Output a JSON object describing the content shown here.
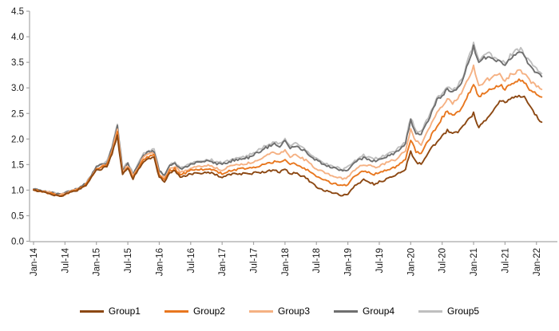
{
  "chart_data": {
    "type": "line",
    "title": "",
    "xlabel": "",
    "ylabel": "",
    "x_unit": "month",
    "x_range": [
      "Jan-14",
      "Feb-22"
    ],
    "x_tick_labels": [
      "Jan-14",
      "Jul-14",
      "Jan-15",
      "Jul-15",
      "Jan-16",
      "Jul-16",
      "Jan-17",
      "Jul-17",
      "Jan-18",
      "Jul-18",
      "Jan-19",
      "Jul-19",
      "Jan-20",
      "Jul-20",
      "Jan-21",
      "Jul-21",
      "Jan-22"
    ],
    "x_tick_interval_months": 6,
    "y_tick_labels": [
      "0.0",
      "0.5",
      "1.0",
      "1.5",
      "2.0",
      "2.5",
      "3.0",
      "3.5",
      "4.0",
      "4.5"
    ],
    "ylim": [
      0.0,
      4.5
    ],
    "gridlines": false,
    "legend_position": "bottom",
    "axis_color": "#A6A6A6",
    "text_color": "#000000",
    "series": [
      {
        "name": "Group1",
        "color": "#8C4813",
        "values": [
          1.0,
          0.98,
          0.96,
          0.93,
          0.91,
          0.89,
          0.91,
          0.95,
          0.99,
          1.03,
          1.1,
          1.24,
          1.38,
          1.42,
          1.47,
          1.72,
          2.05,
          1.3,
          1.42,
          1.22,
          1.4,
          1.57,
          1.63,
          1.64,
          1.25,
          1.17,
          1.34,
          1.38,
          1.27,
          1.29,
          1.32,
          1.34,
          1.34,
          1.34,
          1.33,
          1.29,
          1.25,
          1.28,
          1.31,
          1.32,
          1.32,
          1.33,
          1.33,
          1.35,
          1.36,
          1.38,
          1.39,
          1.36,
          1.4,
          1.32,
          1.34,
          1.29,
          1.24,
          1.15,
          1.06,
          1.02,
          0.98,
          0.95,
          0.92,
          0.89,
          0.92,
          1.05,
          1.14,
          1.2,
          1.16,
          1.12,
          1.16,
          1.2,
          1.24,
          1.28,
          1.34,
          1.42,
          1.75,
          1.55,
          1.51,
          1.68,
          1.82,
          1.95,
          2.05,
          2.18,
          2.1,
          2.15,
          2.25,
          2.38,
          2.5,
          2.22,
          2.35,
          2.45,
          2.6,
          2.76,
          2.72,
          2.8,
          2.83,
          2.85,
          2.8,
          2.6,
          2.45,
          2.33
        ]
      },
      {
        "name": "Group2",
        "color": "#E8771F",
        "values": [
          1.01,
          0.99,
          0.97,
          0.94,
          0.92,
          0.9,
          0.92,
          0.96,
          1.0,
          1.04,
          1.11,
          1.25,
          1.4,
          1.44,
          1.49,
          1.75,
          2.12,
          1.33,
          1.45,
          1.25,
          1.43,
          1.61,
          1.66,
          1.68,
          1.28,
          1.2,
          1.38,
          1.42,
          1.31,
          1.33,
          1.38,
          1.4,
          1.4,
          1.41,
          1.4,
          1.36,
          1.33,
          1.36,
          1.4,
          1.41,
          1.42,
          1.43,
          1.44,
          1.47,
          1.5,
          1.53,
          1.56,
          1.53,
          1.58,
          1.49,
          1.52,
          1.47,
          1.41,
          1.33,
          1.26,
          1.22,
          1.17,
          1.14,
          1.11,
          1.08,
          1.12,
          1.25,
          1.32,
          1.38,
          1.34,
          1.31,
          1.34,
          1.38,
          1.41,
          1.45,
          1.52,
          1.61,
          1.98,
          1.76,
          1.72,
          1.9,
          2.08,
          2.25,
          2.42,
          2.55,
          2.45,
          2.52,
          2.67,
          2.88,
          3.07,
          2.84,
          2.9,
          2.95,
          3.0,
          3.07,
          2.98,
          3.08,
          3.12,
          3.15,
          3.06,
          2.95,
          2.88,
          2.82
        ]
      },
      {
        "name": "Group3",
        "color": "#F5B183",
        "values": [
          1.01,
          0.99,
          0.97,
          0.95,
          0.93,
          0.91,
          0.93,
          0.97,
          1.01,
          1.05,
          1.12,
          1.26,
          1.42,
          1.46,
          1.51,
          1.78,
          2.18,
          1.36,
          1.48,
          1.27,
          1.46,
          1.64,
          1.7,
          1.72,
          1.32,
          1.24,
          1.42,
          1.47,
          1.35,
          1.38,
          1.44,
          1.46,
          1.47,
          1.48,
          1.47,
          1.43,
          1.4,
          1.44,
          1.48,
          1.49,
          1.5,
          1.53,
          1.56,
          1.61,
          1.66,
          1.7,
          1.74,
          1.7,
          1.78,
          1.66,
          1.7,
          1.64,
          1.58,
          1.5,
          1.42,
          1.37,
          1.32,
          1.29,
          1.26,
          1.22,
          1.26,
          1.38,
          1.45,
          1.51,
          1.48,
          1.45,
          1.48,
          1.52,
          1.56,
          1.6,
          1.68,
          1.78,
          2.19,
          1.95,
          1.9,
          2.1,
          2.3,
          2.5,
          2.63,
          2.8,
          2.7,
          2.78,
          2.95,
          3.2,
          3.41,
          3.04,
          3.12,
          3.18,
          3.22,
          3.26,
          3.15,
          3.25,
          3.3,
          3.33,
          3.24,
          3.12,
          3.03,
          2.97
        ]
      },
      {
        "name": "Group4",
        "color": "#6F6F6F",
        "values": [
          1.02,
          1.0,
          0.98,
          0.96,
          0.94,
          0.92,
          0.94,
          0.98,
          1.02,
          1.06,
          1.13,
          1.28,
          1.45,
          1.49,
          1.54,
          1.82,
          2.26,
          1.4,
          1.52,
          1.31,
          1.5,
          1.69,
          1.75,
          1.77,
          1.37,
          1.29,
          1.47,
          1.52,
          1.41,
          1.44,
          1.51,
          1.53,
          1.55,
          1.56,
          1.56,
          1.52,
          1.5,
          1.54,
          1.58,
          1.59,
          1.61,
          1.64,
          1.69,
          1.75,
          1.81,
          1.86,
          1.9,
          1.86,
          1.95,
          1.83,
          1.87,
          1.81,
          1.75,
          1.66,
          1.58,
          1.53,
          1.47,
          1.44,
          1.41,
          1.37,
          1.41,
          1.52,
          1.58,
          1.64,
          1.6,
          1.57,
          1.6,
          1.64,
          1.68,
          1.73,
          1.81,
          1.92,
          2.37,
          2.12,
          2.1,
          2.3,
          2.52,
          2.76,
          2.85,
          2.98,
          2.9,
          2.98,
          3.18,
          3.52,
          3.8,
          3.48,
          3.58,
          3.62,
          3.53,
          3.52,
          3.42,
          3.58,
          3.67,
          3.7,
          3.55,
          3.42,
          3.3,
          3.22
        ]
      },
      {
        "name": "Group5",
        "color": "#BFBFBF",
        "values": [
          1.02,
          1.0,
          0.98,
          0.96,
          0.94,
          0.92,
          0.94,
          0.98,
          1.02,
          1.07,
          1.14,
          1.29,
          1.46,
          1.5,
          1.56,
          1.84,
          2.3,
          1.42,
          1.54,
          1.32,
          1.52,
          1.71,
          1.77,
          1.79,
          1.38,
          1.3,
          1.49,
          1.54,
          1.43,
          1.46,
          1.54,
          1.56,
          1.58,
          1.59,
          1.59,
          1.55,
          1.53,
          1.57,
          1.61,
          1.62,
          1.64,
          1.68,
          1.73,
          1.79,
          1.85,
          1.9,
          1.94,
          1.9,
          1.99,
          1.87,
          1.91,
          1.85,
          1.79,
          1.7,
          1.62,
          1.57,
          1.51,
          1.48,
          1.45,
          1.41,
          1.45,
          1.56,
          1.62,
          1.68,
          1.64,
          1.61,
          1.64,
          1.68,
          1.72,
          1.77,
          1.85,
          1.95,
          2.42,
          2.16,
          2.14,
          2.35,
          2.57,
          2.81,
          2.9,
          3.03,
          2.95,
          3.03,
          3.23,
          3.58,
          3.86,
          3.52,
          3.63,
          3.68,
          3.58,
          3.57,
          3.47,
          3.63,
          3.72,
          3.75,
          3.6,
          3.47,
          3.36,
          3.28
        ]
      }
    ]
  }
}
